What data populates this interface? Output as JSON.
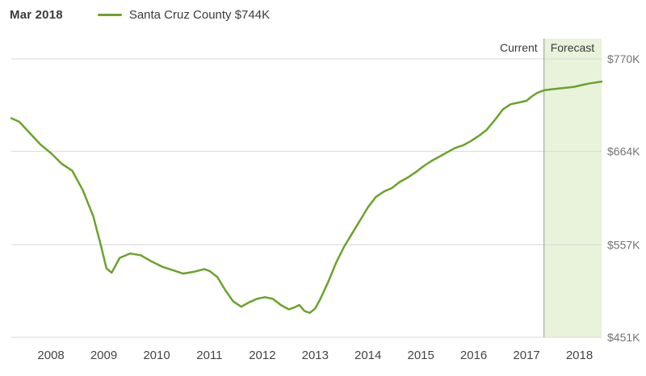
{
  "header": {
    "date_label": "Mar 2018"
  },
  "legend": {
    "label": "Santa Cruz County $744K",
    "color": "#6ba32a"
  },
  "annotations": {
    "current_label": "Current",
    "forecast_label": "Forecast"
  },
  "colors": {
    "line": "#6ba32a",
    "forecast_band": "#e9f2da",
    "gridline": "#d8d8d8",
    "divider": "#999999",
    "y_tick_text": "#737373",
    "x_tick_text": "#444444",
    "annotation_text": "#3b3b3b"
  },
  "chart_data": {
    "type": "line",
    "title": "Santa Cruz County median home value over time with forecast",
    "unit": "$K (USD thousands)",
    "legend_position": "top",
    "grid": "horizontal-only",
    "x_range": [
      2007.25,
      2018.42
    ],
    "ylim": [
      451,
      770
    ],
    "forecast_start": 2017.33,
    "y_ticks": [
      {
        "value": 770,
        "label": "$770K"
      },
      {
        "value": 664,
        "label": "$664K"
      },
      {
        "value": 557,
        "label": "$557K"
      },
      {
        "value": 451,
        "label": "$451K"
      }
    ],
    "x_ticks": [
      {
        "value": 2008,
        "label": "2008"
      },
      {
        "value": 2009,
        "label": "2009"
      },
      {
        "value": 2010,
        "label": "2010"
      },
      {
        "value": 2011,
        "label": "2011"
      },
      {
        "value": 2012,
        "label": "2012"
      },
      {
        "value": 2013,
        "label": "2013"
      },
      {
        "value": 2014,
        "label": "2014"
      },
      {
        "value": 2015,
        "label": "2015"
      },
      {
        "value": 2016,
        "label": "2016"
      },
      {
        "value": 2017,
        "label": "2017"
      },
      {
        "value": 2018,
        "label": "2018"
      }
    ],
    "series": [
      {
        "name": "Santa Cruz County",
        "latest_point_label": "Mar 2018",
        "latest_value_label": "$744K",
        "x": [
          2007.25,
          2007.4,
          2007.6,
          2007.8,
          2008.0,
          2008.2,
          2008.4,
          2008.6,
          2008.8,
          2008.95,
          2009.05,
          2009.15,
          2009.3,
          2009.5,
          2009.7,
          2009.9,
          2010.1,
          2010.3,
          2010.5,
          2010.7,
          2010.9,
          2011.0,
          2011.15,
          2011.3,
          2011.45,
          2011.6,
          2011.75,
          2011.9,
          2012.05,
          2012.2,
          2012.35,
          2012.5,
          2012.6,
          2012.7,
          2012.8,
          2012.9,
          2013.0,
          2013.1,
          2013.25,
          2013.4,
          2013.55,
          2013.7,
          2013.85,
          2014.0,
          2014.15,
          2014.3,
          2014.45,
          2014.6,
          2014.75,
          2014.9,
          2015.05,
          2015.2,
          2015.35,
          2015.5,
          2015.65,
          2015.8,
          2015.95,
          2016.1,
          2016.25,
          2016.4,
          2016.55,
          2016.7,
          2016.85,
          2017.0,
          2017.1,
          2017.2,
          2017.33,
          2017.45,
          2017.6,
          2017.75,
          2017.9,
          2018.05,
          2018.2,
          2018.42
        ],
        "values": [
          702,
          698,
          685,
          672,
          662,
          650,
          642,
          620,
          590,
          555,
          530,
          525,
          542,
          547,
          545,
          538,
          532,
          528,
          524,
          526,
          529,
          527,
          520,
          505,
          492,
          486,
          491,
          495,
          497,
          495,
          488,
          483,
          485,
          488,
          481,
          479,
          484,
          495,
          515,
          537,
          555,
          570,
          585,
          600,
          612,
          618,
          622,
          629,
          634,
          640,
          647,
          653,
          658,
          663,
          668,
          671,
          676,
          682,
          689,
          700,
          712,
          718,
          720,
          722,
          727,
          731,
          734,
          735,
          736,
          737,
          738,
          740,
          742,
          744
        ]
      }
    ]
  }
}
